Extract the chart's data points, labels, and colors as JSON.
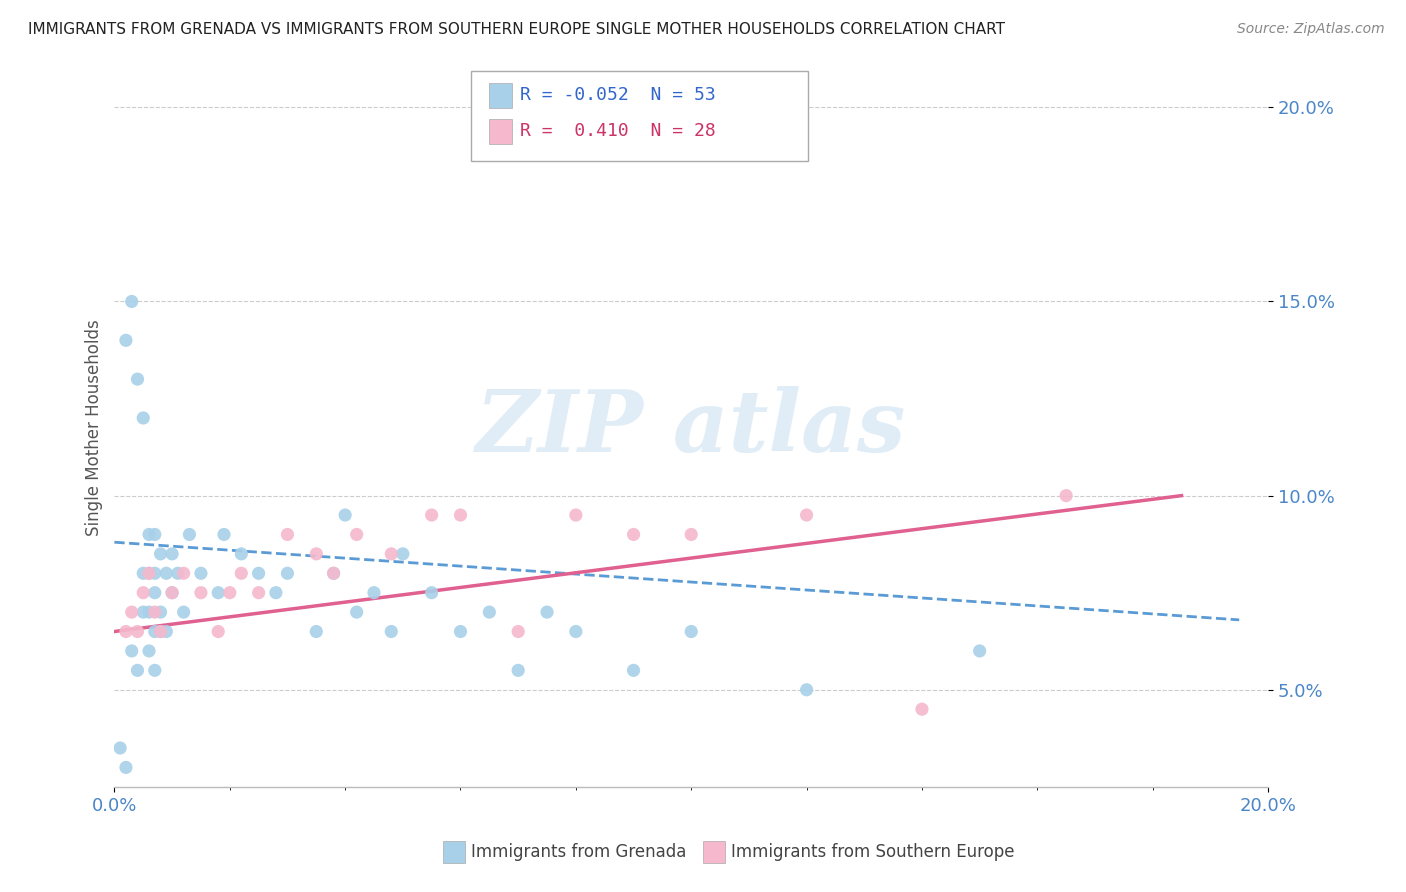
{
  "title": "IMMIGRANTS FROM GRENADA VS IMMIGRANTS FROM SOUTHERN EUROPE SINGLE MOTHER HOUSEHOLDS CORRELATION CHART",
  "source": "Source: ZipAtlas.com",
  "ylabel": "Single Mother Households",
  "xlim": [
    0.0,
    0.2
  ],
  "ylim": [
    0.025,
    0.21
  ],
  "yticks": [
    0.05,
    0.1,
    0.15,
    0.2
  ],
  "ytick_labels": [
    "5.0%",
    "10.0%",
    "15.0%",
    "20.0%"
  ],
  "color_grenada": "#a8d0e8",
  "color_southern_europe": "#f5b8cc",
  "color_line_grenada": "#5b9bd5",
  "color_line_southern_europe": "#e06090",
  "grenada_x": [
    0.001,
    0.002,
    0.002,
    0.003,
    0.003,
    0.004,
    0.004,
    0.005,
    0.005,
    0.005,
    0.006,
    0.006,
    0.006,
    0.006,
    0.007,
    0.007,
    0.007,
    0.007,
    0.007,
    0.008,
    0.008,
    0.008,
    0.009,
    0.009,
    0.01,
    0.01,
    0.011,
    0.012,
    0.013,
    0.015,
    0.018,
    0.019,
    0.022,
    0.025,
    0.028,
    0.03,
    0.035,
    0.038,
    0.04,
    0.042,
    0.045,
    0.048,
    0.05,
    0.055,
    0.06,
    0.065,
    0.07,
    0.075,
    0.08,
    0.09,
    0.1,
    0.12,
    0.15
  ],
  "grenada_y": [
    0.035,
    0.14,
    0.03,
    0.15,
    0.06,
    0.13,
    0.055,
    0.12,
    0.07,
    0.08,
    0.09,
    0.08,
    0.07,
    0.06,
    0.09,
    0.08,
    0.075,
    0.065,
    0.055,
    0.085,
    0.07,
    0.065,
    0.08,
    0.065,
    0.075,
    0.085,
    0.08,
    0.07,
    0.09,
    0.08,
    0.075,
    0.09,
    0.085,
    0.08,
    0.075,
    0.08,
    0.065,
    0.08,
    0.095,
    0.07,
    0.075,
    0.065,
    0.085,
    0.075,
    0.065,
    0.07,
    0.055,
    0.07,
    0.065,
    0.055,
    0.065,
    0.05,
    0.06
  ],
  "southern_x": [
    0.002,
    0.003,
    0.004,
    0.005,
    0.006,
    0.007,
    0.008,
    0.01,
    0.012,
    0.015,
    0.018,
    0.02,
    0.022,
    0.025,
    0.03,
    0.035,
    0.038,
    0.042,
    0.048,
    0.055,
    0.06,
    0.07,
    0.08,
    0.09,
    0.1,
    0.12,
    0.14,
    0.165
  ],
  "southern_y": [
    0.065,
    0.07,
    0.065,
    0.075,
    0.08,
    0.07,
    0.065,
    0.075,
    0.08,
    0.075,
    0.065,
    0.075,
    0.08,
    0.075,
    0.09,
    0.085,
    0.08,
    0.09,
    0.085,
    0.095,
    0.095,
    0.065,
    0.095,
    0.09,
    0.09,
    0.095,
    0.045,
    0.1
  ],
  "grenada_trend_x0": 0.0,
  "grenada_trend_x1": 0.195,
  "grenada_trend_y0": 0.088,
  "grenada_trend_y1": 0.068,
  "southern_trend_x0": 0.0,
  "southern_trend_x1": 0.185,
  "southern_trend_y0": 0.065,
  "southern_trend_y1": 0.1,
  "watermark_text": "ZIP atlas",
  "legend_label1": "Immigrants from Grenada",
  "legend_label2": "Immigrants from Southern Europe"
}
